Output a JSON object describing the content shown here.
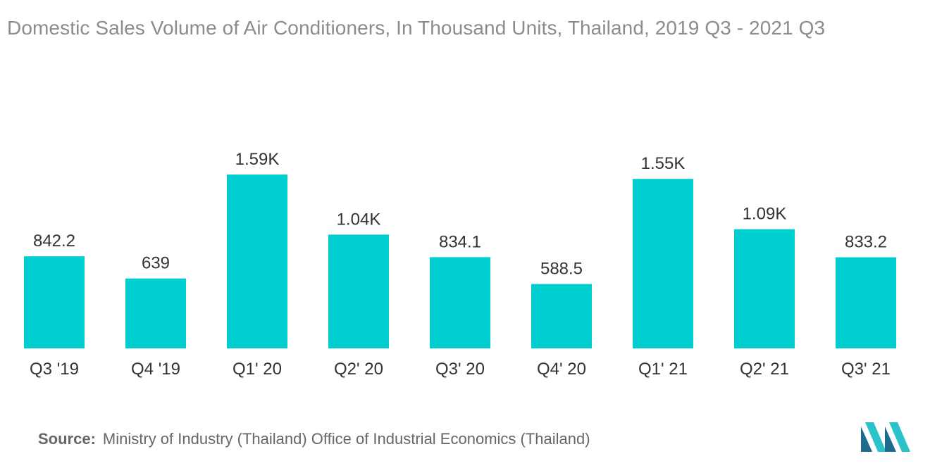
{
  "chart_data": {
    "type": "bar",
    "title": "Domestic Sales Volume of Air Conditioners, In Thousand Units, Thailand, 2019 Q3 - 2021 Q3",
    "xlabel": "",
    "ylabel": "",
    "categories": [
      "Q3 '19",
      "Q4 '19",
      "Q1' 20",
      "Q2' 20",
      "Q3' 20",
      "Q4' 20",
      "Q1' 21",
      "Q2' 21",
      "Q3' 21"
    ],
    "values": [
      842.2,
      639,
      1590,
      1040,
      834.1,
      588.5,
      1550,
      1090,
      833.2
    ],
    "data_labels": [
      "842.2",
      "639",
      "1.59K",
      "1.04K",
      "834.1",
      "588.5",
      "1.55K",
      "1.09K",
      "833.2"
    ],
    "ylim": [
      0,
      1590
    ],
    "grid": false,
    "legend": "none",
    "bar_color": "#00cdd0"
  },
  "source": {
    "label": "Source:",
    "text": "Ministry of Industry (Thailand) Office of Industrial Economics (Thailand)"
  },
  "colors": {
    "logo_dark": "#1f6b8f",
    "logo_light": "#2bc3c9"
  }
}
